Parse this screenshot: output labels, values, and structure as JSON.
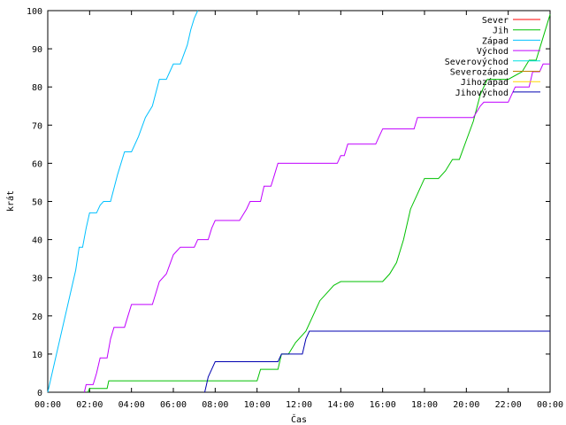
{
  "chart_data": {
    "type": "line",
    "title": "",
    "xlabel": "Čas",
    "ylabel": "krát",
    "xlim": [
      "00:00",
      "00:00"
    ],
    "ylim": [
      0,
      100
    ],
    "x_tick_labels": [
      "00:00",
      "02:00",
      "04:00",
      "06:00",
      "08:00",
      "10:00",
      "12:00",
      "14:00",
      "16:00",
      "18:00",
      "20:00",
      "22:00",
      "00:00"
    ],
    "y_tick_labels": [
      "0",
      "10",
      "20",
      "30",
      "40",
      "50",
      "60",
      "70",
      "80",
      "90",
      "100"
    ],
    "grid": false,
    "legend_position": "top-right",
    "series": [
      {
        "name": "Sever",
        "color": "#ff0000",
        "points": []
      },
      {
        "name": "Jih",
        "color": "#00c000",
        "points": [
          [
            "01:55",
            0
          ],
          [
            "02:00",
            1
          ],
          [
            "02:50",
            1
          ],
          [
            "02:55",
            3
          ],
          [
            "10:00",
            3
          ],
          [
            "10:10",
            6
          ],
          [
            "11:00",
            6
          ],
          [
            "11:10",
            10
          ],
          [
            "11:30",
            10
          ],
          [
            "11:50",
            13
          ],
          [
            "12:10",
            15
          ],
          [
            "12:20",
            16
          ],
          [
            "12:40",
            20
          ],
          [
            "13:00",
            24
          ],
          [
            "13:20",
            26
          ],
          [
            "13:40",
            28
          ],
          [
            "14:00",
            29
          ],
          [
            "16:00",
            29
          ],
          [
            "16:20",
            31
          ],
          [
            "16:40",
            34
          ],
          [
            "17:00",
            40
          ],
          [
            "17:20",
            48
          ],
          [
            "17:40",
            52
          ],
          [
            "18:00",
            56
          ],
          [
            "18:40",
            56
          ],
          [
            "19:00",
            58
          ],
          [
            "19:20",
            61
          ],
          [
            "19:40",
            61
          ],
          [
            "20:00",
            66
          ],
          [
            "20:20",
            71
          ],
          [
            "20:40",
            78
          ],
          [
            "21:00",
            82
          ],
          [
            "22:00",
            82
          ],
          [
            "22:40",
            84
          ],
          [
            "23:00",
            87
          ],
          [
            "23:20",
            87
          ],
          [
            "23:40",
            93
          ],
          [
            "24:00",
            99
          ]
        ]
      },
      {
        "name": "Západ",
        "color": "#00c0ff",
        "points": [
          [
            "00:00",
            0
          ],
          [
            "00:20",
            8
          ],
          [
            "00:40",
            16
          ],
          [
            "01:00",
            24
          ],
          [
            "01:20",
            32
          ],
          [
            "01:30",
            38
          ],
          [
            "01:40",
            38
          ],
          [
            "01:50",
            43
          ],
          [
            "02:00",
            47
          ],
          [
            "02:20",
            47
          ],
          [
            "02:30",
            49
          ],
          [
            "02:40",
            50
          ],
          [
            "03:00",
            50
          ],
          [
            "03:20",
            57
          ],
          [
            "03:40",
            63
          ],
          [
            "04:00",
            63
          ],
          [
            "04:20",
            67
          ],
          [
            "04:40",
            72
          ],
          [
            "05:00",
            75
          ],
          [
            "05:20",
            82
          ],
          [
            "05:40",
            82
          ],
          [
            "06:00",
            86
          ],
          [
            "06:20",
            86
          ],
          [
            "06:40",
            91
          ],
          [
            "06:50",
            95
          ],
          [
            "07:00",
            98
          ],
          [
            "07:10",
            100
          ]
        ]
      },
      {
        "name": "Východ",
        "color": "#c000ff",
        "points": [
          [
            "01:45",
            0
          ],
          [
            "01:50",
            2
          ],
          [
            "02:10",
            2
          ],
          [
            "02:20",
            5
          ],
          [
            "02:30",
            9
          ],
          [
            "02:50",
            9
          ],
          [
            "03:00",
            14
          ],
          [
            "03:10",
            17
          ],
          [
            "03:40",
            17
          ],
          [
            "03:50",
            20
          ],
          [
            "04:00",
            23
          ],
          [
            "05:00",
            23
          ],
          [
            "05:10",
            26
          ],
          [
            "05:20",
            29
          ],
          [
            "05:40",
            31
          ],
          [
            "06:00",
            36
          ],
          [
            "06:10",
            37
          ],
          [
            "06:20",
            38
          ],
          [
            "07:00",
            38
          ],
          [
            "07:10",
            40
          ],
          [
            "07:40",
            40
          ],
          [
            "07:50",
            43
          ],
          [
            "08:00",
            45
          ],
          [
            "09:10",
            45
          ],
          [
            "09:30",
            48
          ],
          [
            "09:40",
            50
          ],
          [
            "10:10",
            50
          ],
          [
            "10:20",
            54
          ],
          [
            "10:40",
            54
          ],
          [
            "10:50",
            57
          ],
          [
            "11:00",
            60
          ],
          [
            "13:50",
            60
          ],
          [
            "14:00",
            62
          ],
          [
            "14:10",
            62
          ],
          [
            "14:20",
            65
          ],
          [
            "15:40",
            65
          ],
          [
            "15:50",
            67
          ],
          [
            "16:00",
            69
          ],
          [
            "17:30",
            69
          ],
          [
            "17:40",
            72
          ],
          [
            "20:20",
            72
          ],
          [
            "20:40",
            75
          ],
          [
            "20:50",
            76
          ],
          [
            "22:00",
            76
          ],
          [
            "22:10",
            78
          ],
          [
            "22:20",
            80
          ],
          [
            "23:00",
            80
          ],
          [
            "23:10",
            84
          ],
          [
            "23:30",
            84
          ],
          [
            "23:40",
            86
          ],
          [
            "24:00",
            86
          ]
        ]
      },
      {
        "name": "Severovýchod",
        "color": "#00e0e0",
        "points": []
      },
      {
        "name": "Severozápad",
        "color": "#c08000",
        "points": []
      },
      {
        "name": "Jihozápad",
        "color": "#ffd700",
        "points": []
      },
      {
        "name": "Jihovýchod",
        "color": "#0000b0",
        "points": [
          [
            "07:30",
            0
          ],
          [
            "07:35",
            2
          ],
          [
            "07:40",
            4
          ],
          [
            "07:50",
            6
          ],
          [
            "08:00",
            8
          ],
          [
            "11:00",
            8
          ],
          [
            "11:10",
            10
          ],
          [
            "12:10",
            10
          ],
          [
            "12:20",
            14
          ],
          [
            "12:30",
            16
          ],
          [
            "24:00",
            16
          ]
        ]
      }
    ]
  }
}
